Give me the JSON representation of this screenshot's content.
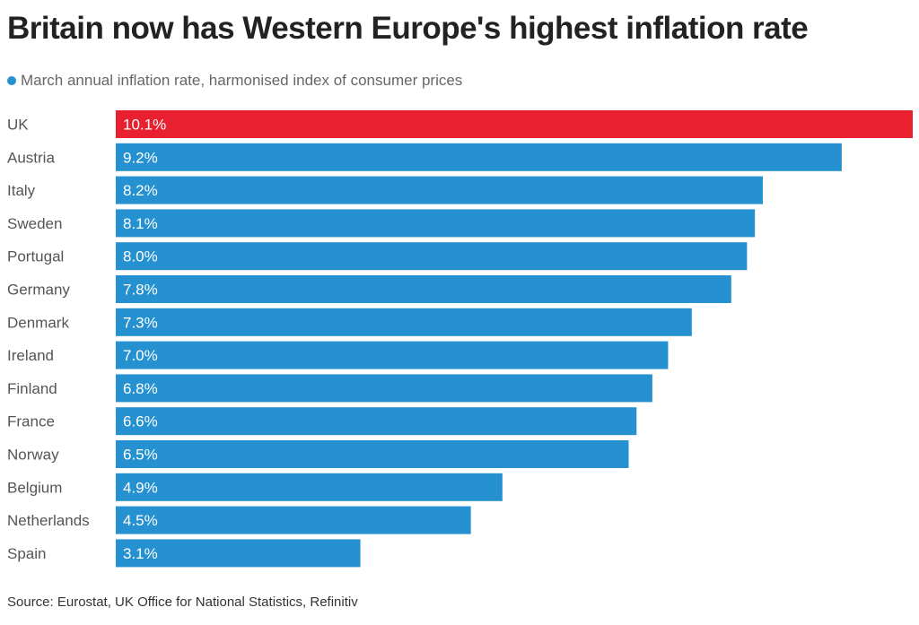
{
  "chart_data": {
    "type": "bar",
    "orientation": "horizontal",
    "title": "Britain now has Western Europe's highest inflation rate",
    "legend": "March annual inflation rate, harmonised index of consumer prices",
    "source": "Source: Eurostat, UK Office for National Statistics, Refinitiv",
    "categories": [
      "UK",
      "Austria",
      "Italy",
      "Sweden",
      "Portugal",
      "Germany",
      "Denmark",
      "Ireland",
      "Finland",
      "France",
      "Norway",
      "Belgium",
      "Netherlands",
      "Spain"
    ],
    "values": [
      10.1,
      9.2,
      8.2,
      8.1,
      8.0,
      7.8,
      7.3,
      7.0,
      6.8,
      6.6,
      6.5,
      4.9,
      4.5,
      3.1
    ],
    "value_labels": [
      "10.1%",
      "9.2%",
      "8.2%",
      "8.1%",
      "8.0%",
      "7.8%",
      "7.3%",
      "7.0%",
      "6.8%",
      "6.6%",
      "6.5%",
      "4.9%",
      "4.5%",
      "3.1%"
    ],
    "unit": "%",
    "xlim": [
      0,
      10.1
    ],
    "grid": false,
    "colors": {
      "highlight": "#e8202f",
      "default": "#2591d0"
    },
    "highlight_category": "UK"
  }
}
